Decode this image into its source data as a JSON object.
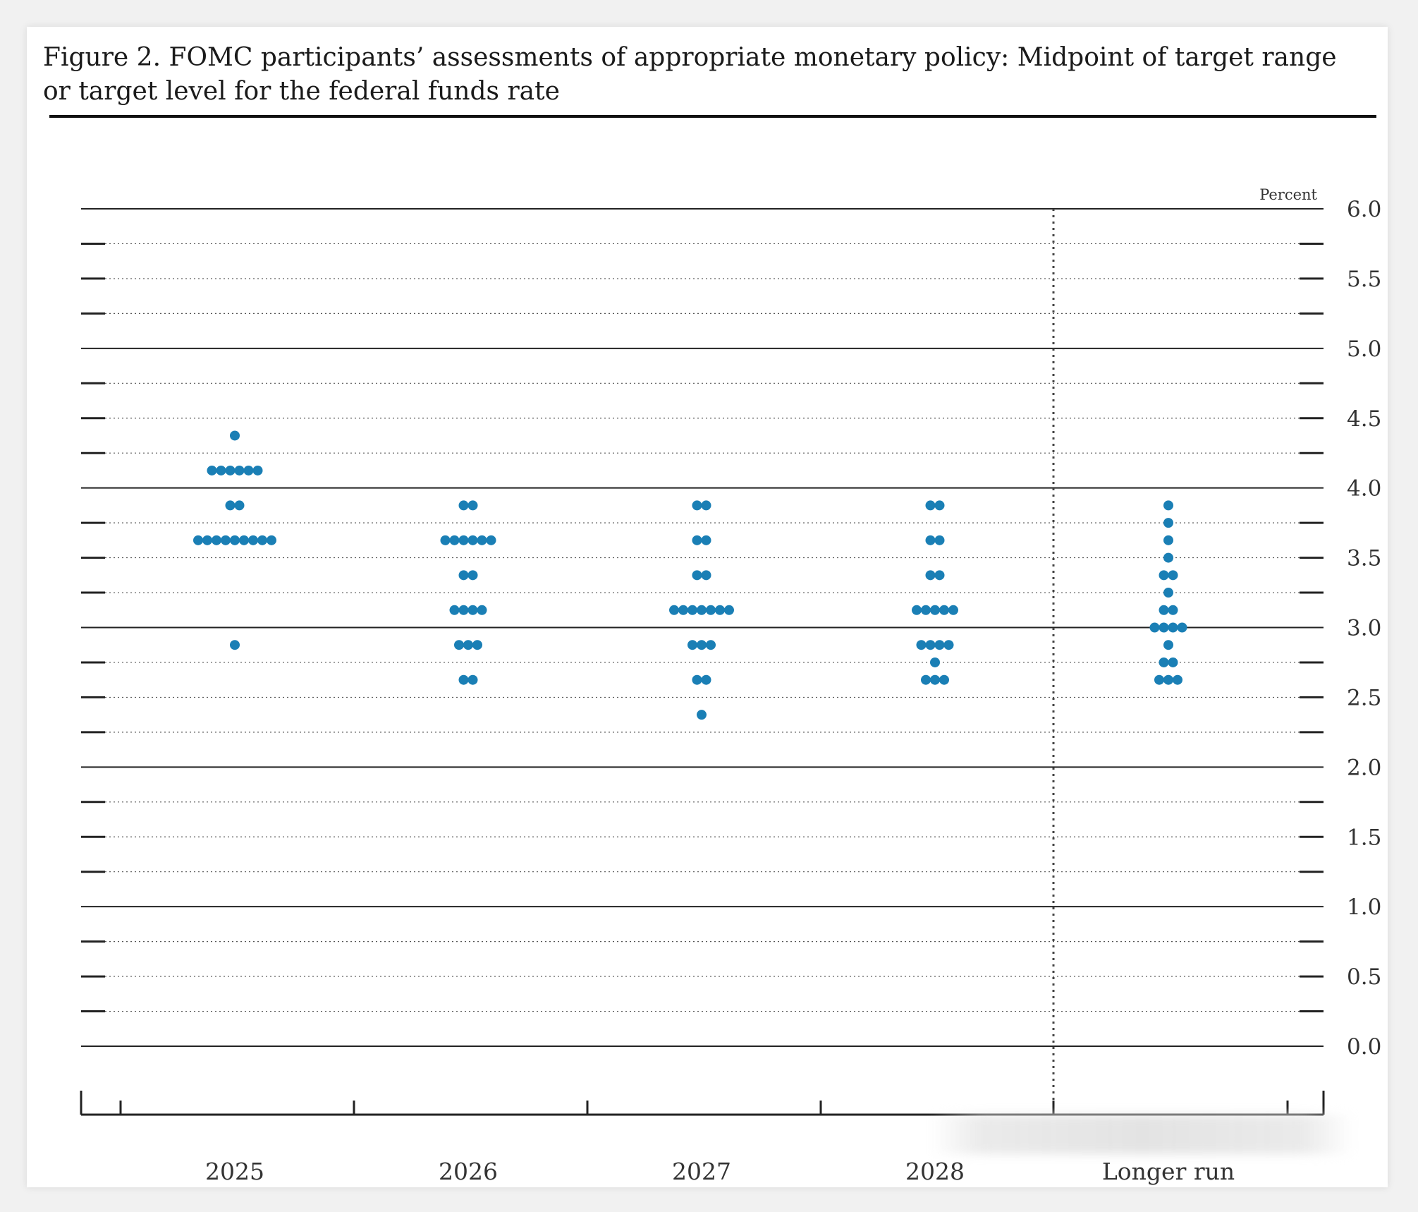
{
  "figure": {
    "title": "Figure 2. FOMC participants’ assessments of appropriate monetary policy: Midpoint of target range or target level for the federal funds rate"
  },
  "chart_data": {
    "type": "scatter",
    "title": "Figure 2. FOMC participants’ assessments of appropriate monetary policy: Midpoint of target range or target level for the federal funds rate",
    "xlabel": "",
    "ylabel": "",
    "y_unit_label": "Percent",
    "ylim": [
      0.0,
      6.0
    ],
    "y_tick_labels": [
      "6.0",
      "5.5",
      "5.0",
      "4.5",
      "4.0",
      "3.5",
      "3.0",
      "2.5",
      "2.0",
      "1.5",
      "1.0",
      "0.5",
      "0.0"
    ],
    "y_minor_step": 0.25,
    "categories": [
      "2025",
      "2026",
      "2027",
      "2028",
      "Longer run"
    ],
    "dot_color": "#1a7fb5",
    "grid": true,
    "longer_run_separator": true,
    "dots": [
      {
        "category": "2025",
        "levels": [
          {
            "rate": 4.375,
            "count": 1
          },
          {
            "rate": 4.125,
            "count": 6
          },
          {
            "rate": 3.875,
            "count": 2
          },
          {
            "rate": 3.625,
            "count": 9
          },
          {
            "rate": 2.875,
            "count": 1
          }
        ]
      },
      {
        "category": "2026",
        "levels": [
          {
            "rate": 3.875,
            "count": 2
          },
          {
            "rate": 3.625,
            "count": 6
          },
          {
            "rate": 3.375,
            "count": 2
          },
          {
            "rate": 3.125,
            "count": 4
          },
          {
            "rate": 2.875,
            "count": 3
          },
          {
            "rate": 2.625,
            "count": 2
          }
        ]
      },
      {
        "category": "2027",
        "levels": [
          {
            "rate": 3.875,
            "count": 2
          },
          {
            "rate": 3.625,
            "count": 2
          },
          {
            "rate": 3.375,
            "count": 2
          },
          {
            "rate": 3.125,
            "count": 7
          },
          {
            "rate": 2.875,
            "count": 3
          },
          {
            "rate": 2.625,
            "count": 2
          },
          {
            "rate": 2.375,
            "count": 1
          }
        ]
      },
      {
        "category": "2028",
        "levels": [
          {
            "rate": 3.875,
            "count": 2
          },
          {
            "rate": 3.625,
            "count": 2
          },
          {
            "rate": 3.375,
            "count": 2
          },
          {
            "rate": 3.125,
            "count": 5
          },
          {
            "rate": 2.875,
            "count": 4
          },
          {
            "rate": 2.75,
            "count": 1
          },
          {
            "rate": 2.625,
            "count": 3
          }
        ]
      },
      {
        "category": "Longer run",
        "levels": [
          {
            "rate": 3.875,
            "count": 1
          },
          {
            "rate": 3.75,
            "count": 1
          },
          {
            "rate": 3.625,
            "count": 1
          },
          {
            "rate": 3.5,
            "count": 1
          },
          {
            "rate": 3.375,
            "count": 2
          },
          {
            "rate": 3.25,
            "count": 1
          },
          {
            "rate": 3.125,
            "count": 2
          },
          {
            "rate": 3.0,
            "count": 4
          },
          {
            "rate": 2.875,
            "count": 1
          },
          {
            "rate": 2.75,
            "count": 2
          },
          {
            "rate": 2.625,
            "count": 3
          }
        ]
      }
    ]
  }
}
